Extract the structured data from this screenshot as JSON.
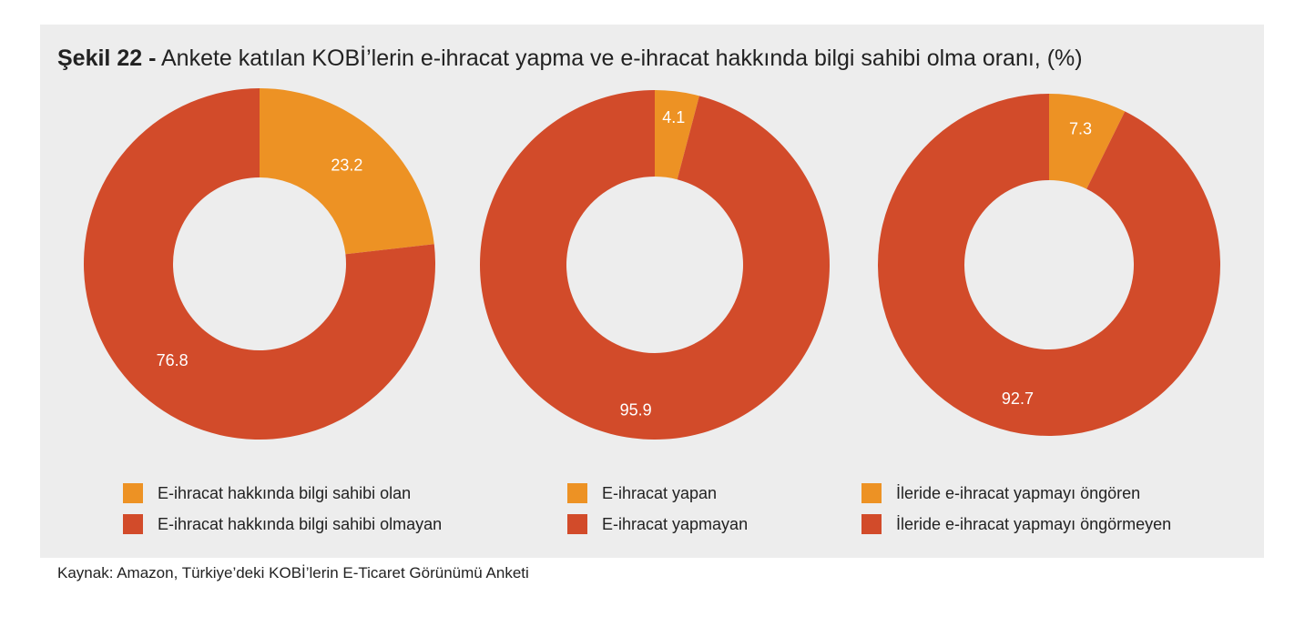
{
  "title": {
    "prefix": "Şekil 22 -",
    "text": "Ankete katılan KOBİ’lerin e-ihracat yapma ve e-ihracat hakkında bilgi sahibi olma oranı, (%)"
  },
  "colors": {
    "orange": "#ed9224",
    "red": "#d24b2a"
  },
  "chart_data": [
    {
      "type": "pie",
      "donut": true,
      "series": [
        {
          "name": "E-ihracat hakkında bilgi sahibi olan",
          "value": 23.2,
          "label": "23.2"
        },
        {
          "name": "E-ihracat hakkında bilgi sahibi olmayan",
          "value": 76.8,
          "label": "76.8"
        }
      ]
    },
    {
      "type": "pie",
      "donut": true,
      "series": [
        {
          "name": "E-ihracat yapan",
          "value": 4.1,
          "label": "4.1"
        },
        {
          "name": "E-ihracat yapmayan",
          "value": 95.9,
          "label": "95.9"
        }
      ]
    },
    {
      "type": "pie",
      "donut": true,
      "series": [
        {
          "name": "İleride e-ihracat yapmayı öngören",
          "value": 7.3,
          "label": "7.3"
        },
        {
          "name": "İleride e-ihracat yapmayı öngörmeyen",
          "value": 92.7,
          "label": "92.7"
        }
      ]
    }
  ],
  "source": "Kaynak: Amazon, Türkiye’deki KOBİ’lerin E-Ticaret Görünümü Anketi"
}
